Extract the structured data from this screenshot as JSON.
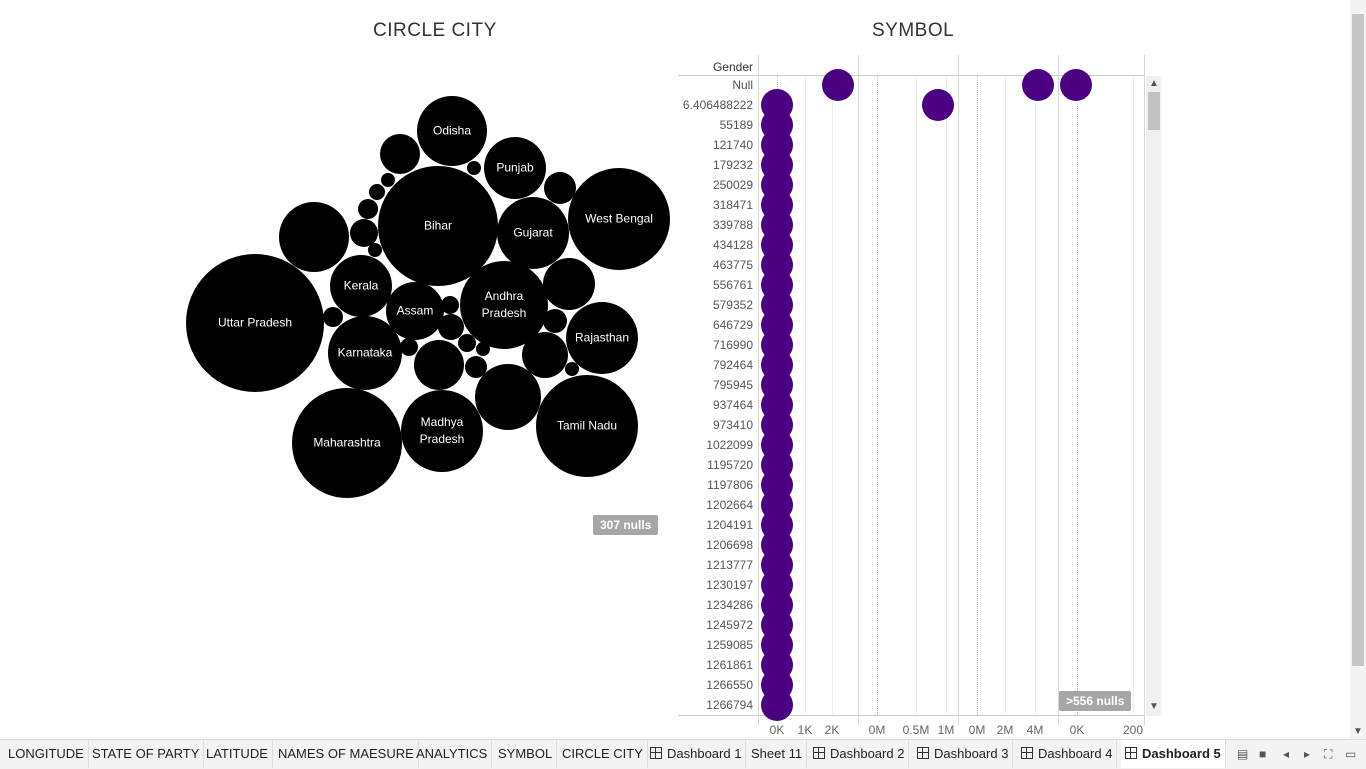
{
  "circle_city": {
    "title": "CIRCLE CITY",
    "null_badge": "307 nulls",
    "states": [
      {
        "name": "Uttar Pradesh"
      },
      {
        "name": "Bihar"
      },
      {
        "name": "Maharashtra"
      },
      {
        "name": "West Bengal"
      },
      {
        "name": "Tamil Nadu"
      },
      {
        "name": "Andhra Pradesh"
      },
      {
        "name": "Gujarat"
      },
      {
        "name": "Madhya Pradesh"
      },
      {
        "name": "Rajasthan"
      },
      {
        "name": "Karnataka"
      },
      {
        "name": "Kerala"
      },
      {
        "name": "Punjab"
      },
      {
        "name": "Odisha"
      },
      {
        "name": "Assam"
      }
    ]
  },
  "symbol": {
    "title": "SYMBOL",
    "row_header": "Gender",
    "rows": [
      "Null",
      "6.406488222",
      "55189",
      "121740",
      "179232",
      "250029",
      "318471",
      "339788",
      "434128",
      "463775",
      "556761",
      "579352",
      "646729",
      "716990",
      "792464",
      "795945",
      "937464",
      "973410",
      "1022099",
      "1195720",
      "1197806",
      "1202664",
      "1204191",
      "1206698",
      "1213777",
      "1230197",
      "1234286",
      "1245972",
      "1259085",
      "1261861",
      "1266550",
      "1266794"
    ],
    "axis_groups": [
      {
        "ticks": [
          "0K",
          "1K",
          "2K"
        ]
      },
      {
        "ticks": [
          "0M",
          "0.5M",
          "1M"
        ]
      },
      {
        "ticks": [
          "0M",
          "2M",
          "4M"
        ]
      },
      {
        "ticks": [
          "0K",
          "200"
        ]
      }
    ],
    "null_badge": ">556 nulls",
    "dot_color": "#4b0082"
  },
  "tabs": [
    {
      "label": "LONGITUDE",
      "icon": false
    },
    {
      "label": "STATE OF PARTY",
      "icon": false
    },
    {
      "label": "LATITUDE",
      "icon": false
    },
    {
      "label": "NAMES OF MAESURE",
      "icon": false
    },
    {
      "label": "ANALYTICS",
      "icon": false
    },
    {
      "label": "SYMBOL",
      "icon": false
    },
    {
      "label": "CIRCLE CITY",
      "icon": false
    },
    {
      "label": "Dashboard 1",
      "icon": true
    },
    {
      "label": "Sheet 11",
      "icon": false
    },
    {
      "label": "Dashboard 2",
      "icon": true
    },
    {
      "label": "Dashboard 3",
      "icon": true
    },
    {
      "label": "Dashboard 4",
      "icon": true
    },
    {
      "label": "Dashboard 5",
      "icon": true,
      "active": true
    }
  ]
}
